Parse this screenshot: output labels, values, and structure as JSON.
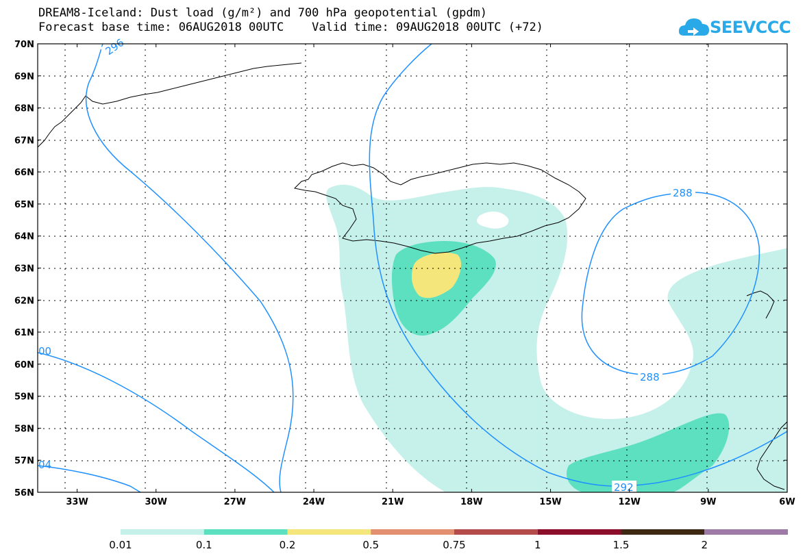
{
  "header": {
    "title_line1": "DREAM8-Iceland: Dust load (g/m²) and 700 hPa geopotential (gpdm)",
    "title_line2": "Forecast base time: 06AUG2018 00UTC    Valid time: 09AUG2018 00UTC (+72)"
  },
  "logo": {
    "text": "SEEVCCC",
    "icon": "cloud-icon",
    "color": "#29a9e7"
  },
  "map": {
    "projection": "lat-lon",
    "extent": {
      "lon": [
        -34.5,
        -6
      ],
      "lat": [
        56,
        70
      ]
    },
    "lat_labels": [
      "56N",
      "57N",
      "58N",
      "59N",
      "60N",
      "61N",
      "62N",
      "63N",
      "64N",
      "65N",
      "66N",
      "67N",
      "68N",
      "69N",
      "70N"
    ],
    "lon_labels": [
      "33W",
      "30W",
      "27W",
      "24W",
      "21W",
      "18W",
      "15W",
      "12W",
      "9W",
      "6W"
    ],
    "gridlines": "dotted"
  },
  "contours": {
    "color": "#1e90ff",
    "labels": [
      "296",
      "288",
      "288",
      "292",
      "00",
      "04"
    ]
  },
  "legend": {
    "colors": [
      "#c6f0ea",
      "#5de0c0",
      "#f5e67c",
      "#e39070",
      "#b44c4c",
      "#8b0f2a",
      "#3e2a14",
      "#9e7aa6"
    ],
    "labels": [
      "0.01",
      "0.1",
      "0.2",
      "0.5",
      "0.75",
      "1",
      "1.5",
      "2"
    ]
  }
}
